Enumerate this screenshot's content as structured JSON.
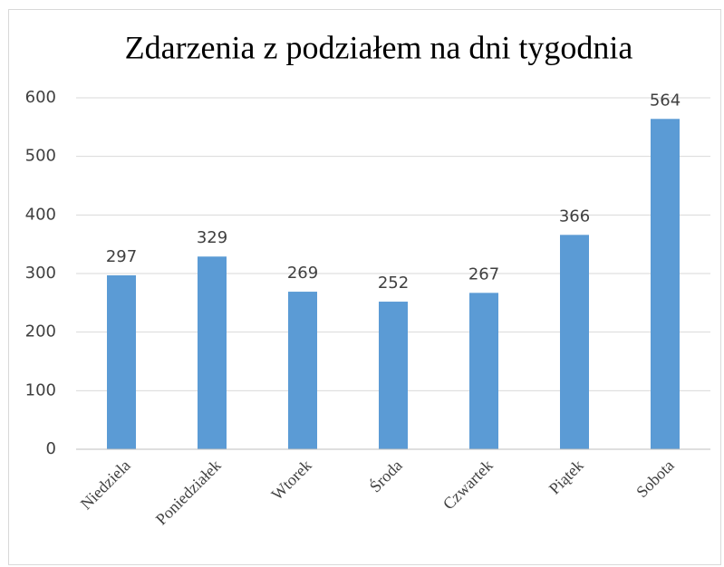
{
  "chart_data": {
    "type": "bar",
    "title": "Zdarzenia z podziałem na dni tygodnia",
    "categories": [
      "Niedziela",
      "Poniedziałek",
      "Wtorek",
      "Środa",
      "Czwartek",
      "Piątek",
      "Sobota"
    ],
    "values": [
      297,
      329,
      269,
      252,
      267,
      366,
      564
    ],
    "color": "#5b9bd5",
    "ylim": [
      0,
      600
    ],
    "yticks": [
      0,
      100,
      200,
      300,
      400,
      500,
      600
    ],
    "grid": true
  }
}
